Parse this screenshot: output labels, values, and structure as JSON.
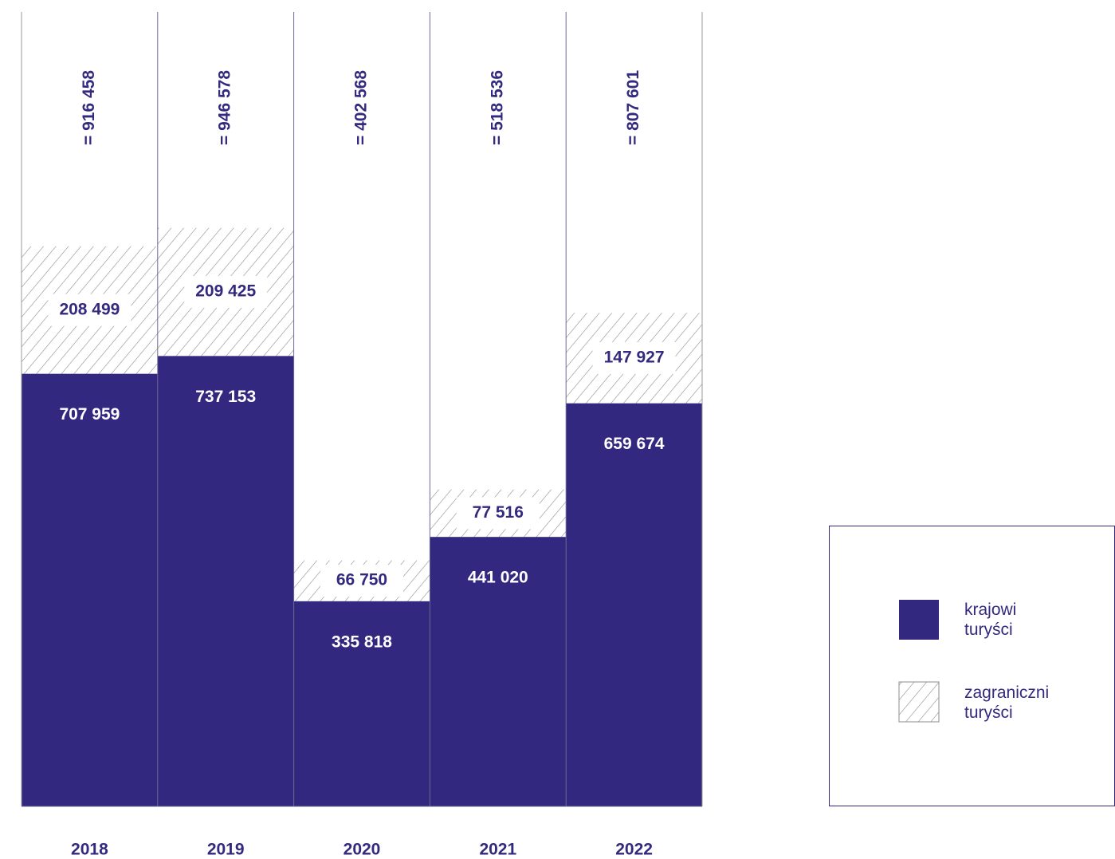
{
  "chart_data": {
    "type": "stacked-bar",
    "categories": [
      "2018",
      "2019",
      "2020",
      "2021",
      "2022"
    ],
    "series": [
      {
        "name": "krajowi turyści",
        "color": "#32287f",
        "values": [
          707959,
          737153,
          335818,
          441020,
          659674
        ],
        "value_labels": [
          "707 959",
          "737 153",
          "335 818",
          "441 020",
          "659 674"
        ]
      },
      {
        "name": "zagraniczni turyści",
        "color": "#8c8c8c",
        "pattern": "hatch",
        "values": [
          208499,
          209425,
          66750,
          77516,
          147927
        ],
        "value_labels": [
          "208 499",
          "209 425",
          "66 750",
          "77 516",
          "147 927"
        ]
      }
    ],
    "totals": [
      916458,
      946578,
      402568,
      518536,
      807601
    ],
    "total_labels": [
      "= 916 458",
      "= 946 578",
      "= 402 568",
      "= 518 536",
      "= 807 601"
    ],
    "ylim": [
      0,
      1300000
    ]
  }
}
